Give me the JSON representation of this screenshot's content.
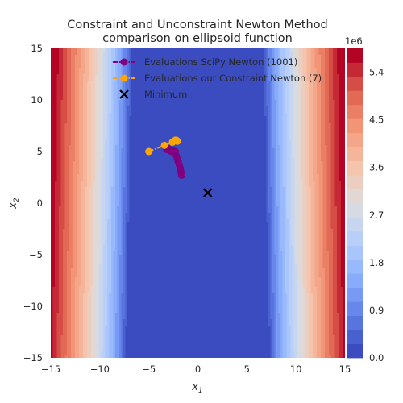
{
  "chart_data": {
    "type": "contour",
    "title_line1": "Constraint and Unconstraint Newton Method",
    "title_line2": "comparison on ellipsoid function",
    "xlabel": "x1",
    "ylabel": "x2",
    "xlim": [
      -15,
      15
    ],
    "ylim": [
      -15,
      15
    ],
    "xticks": [
      -15,
      -10,
      -5,
      0,
      5,
      10,
      15
    ],
    "yticks": [
      -15,
      -10,
      -5,
      0,
      5,
      10,
      15
    ],
    "colorbar": {
      "label": "1e6",
      "min": 0,
      "max": 5.85,
      "ticks": [
        0.0,
        0.9,
        1.8,
        2.7,
        3.6,
        4.5,
        5.4
      ],
      "levels": 22,
      "colormap": "coolwarm"
    },
    "series": [
      {
        "name": "Evaluations SciPy Newton (1001)",
        "color": "#800080",
        "marker": "circle",
        "points": [
          [
            -3.2,
            5.2
          ],
          [
            -3.1,
            5.3
          ],
          [
            -2.9,
            5.2
          ],
          [
            -2.7,
            5.0
          ],
          [
            -2.6,
            5.1
          ],
          [
            -2.3,
            5.0
          ],
          [
            -2.2,
            4.6
          ],
          [
            -2.1,
            4.3
          ],
          [
            -2.0,
            4.0
          ],
          [
            -1.9,
            3.7
          ],
          [
            -1.8,
            3.4
          ],
          [
            -1.75,
            3.1
          ],
          [
            -1.7,
            2.9
          ],
          [
            -1.65,
            2.7
          ]
        ]
      },
      {
        "name": "Evaluations our Constraint Newton (7)",
        "color": "#ffa500",
        "marker": "circle",
        "points": [
          [
            -5.0,
            5.0
          ],
          [
            -3.4,
            5.6
          ],
          [
            -2.6,
            5.9
          ],
          [
            -2.3,
            6.1
          ],
          [
            -2.2,
            6.1
          ],
          [
            -2.15,
            6.05
          ],
          [
            -2.1,
            6.0
          ]
        ]
      },
      {
        "name": "Minimum",
        "color": "#000000",
        "marker": "x",
        "points": [
          [
            1,
            1
          ]
        ]
      }
    ],
    "legend_position": "upper center",
    "grid": false
  }
}
